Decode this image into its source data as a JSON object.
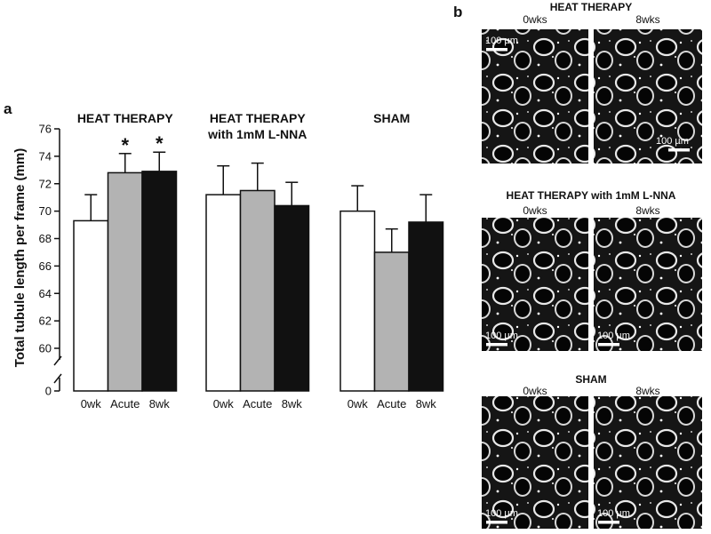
{
  "chart_data": {
    "type": "bar",
    "panel_label": "a",
    "y_label": "Total tubule length per frame (mm)",
    "groups": [
      [
        "HEAT THERAPY"
      ],
      [
        "HEAT THERAPY",
        "with 1mM L-NNA"
      ],
      [
        "SHAM"
      ]
    ],
    "categories": [
      "0wk",
      "Acute",
      "8wk"
    ],
    "series": [
      {
        "name": "0wk",
        "color": "#ffffff",
        "values": [
          69.3,
          71.2,
          70.0
        ],
        "errors": [
          1.9,
          2.1,
          1.85
        ]
      },
      {
        "name": "Acute",
        "color": "#b3b3b3",
        "values": [
          72.8,
          71.5,
          67.0
        ],
        "errors": [
          1.4,
          2.0,
          1.7
        ]
      },
      {
        "name": "8wk",
        "color": "#111111",
        "values": [
          72.9,
          70.4,
          69.2
        ],
        "errors": [
          1.4,
          1.7,
          2.0
        ]
      }
    ],
    "annotations": [
      {
        "text": "*",
        "series": 1,
        "group": 0
      },
      {
        "text": "*",
        "series": 2,
        "group": 0
      }
    ],
    "ylim": [
      0,
      76
    ],
    "yticks": [
      0,
      60,
      62,
      64,
      66,
      68,
      70,
      72,
      74,
      76
    ],
    "broken_axis": true
  },
  "panel_b": {
    "label": "b",
    "sections": [
      {
        "title": "HEAT THERAPY",
        "columns": [
          "0wks",
          "8wks"
        ],
        "scale_bars": [
          "100 µm",
          "100 µm"
        ]
      },
      {
        "title": "HEAT THERAPY with 1mM L-NNA",
        "columns": [
          "0wks",
          "8wks"
        ],
        "scale_bars": [
          "100 µm",
          "100 µm"
        ]
      },
      {
        "title": "SHAM",
        "columns": [
          "0wks",
          "8wks"
        ],
        "scale_bars": [
          "100 µm",
          "100 µm"
        ]
      }
    ]
  }
}
